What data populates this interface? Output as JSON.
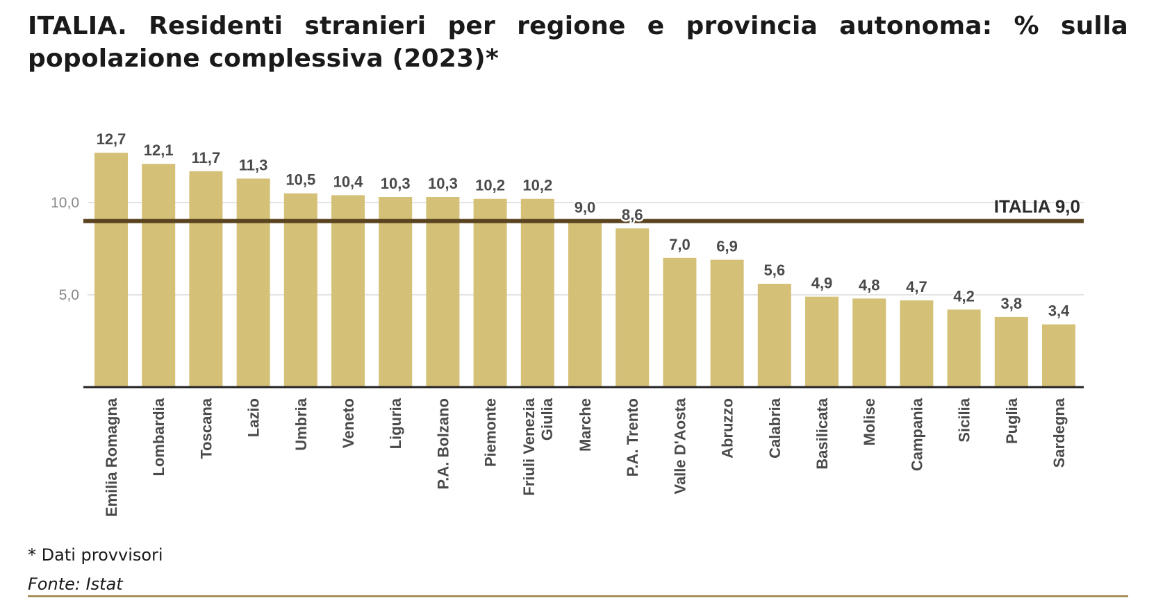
{
  "title": "ITALIA. Residenti stranieri per regione e provincia autonoma: % sulla popolazione complessiva (2023)*",
  "footnote": "* Dati provvisori",
  "source": "Fonte: Istat",
  "colors": {
    "bar": "#d4c077",
    "reference_line": "#5a4420",
    "baseline": "#222222",
    "grid": "#e3e3e3",
    "bottom_rule": "#a8905a"
  },
  "chart_data": {
    "type": "bar",
    "categories": [
      "Emilia Romagna",
      "Lombardia",
      "Toscana",
      "Lazio",
      "Umbria",
      "Veneto",
      "Liguria",
      "P.A. Bolzano",
      "Piemonte",
      "Friuli Venezia Giulia",
      "Marche",
      "P.A. Trento",
      "Valle D'Aosta",
      "Abruzzo",
      "Calabria",
      "Basilicata",
      "Molise",
      "Campania",
      "Sicilia",
      "Puglia",
      "Sardegna"
    ],
    "category_lines": [
      [
        "Emilia Romagna"
      ],
      [
        "Lombardia"
      ],
      [
        "Toscana"
      ],
      [
        "Lazio"
      ],
      [
        "Umbria"
      ],
      [
        "Veneto"
      ],
      [
        "Liguria"
      ],
      [
        "P.A. Bolzano"
      ],
      [
        "Piemonte"
      ],
      [
        "Friuli Venezia",
        "Giulia"
      ],
      [
        "Marche"
      ],
      [
        "P.A. Trento"
      ],
      [
        "Valle D'Aosta"
      ],
      [
        "Abruzzo"
      ],
      [
        "Calabria"
      ],
      [
        "Basilicata"
      ],
      [
        "Molise"
      ],
      [
        "Campania"
      ],
      [
        "Sicilia"
      ],
      [
        "Puglia"
      ],
      [
        "Sardegna"
      ]
    ],
    "values": [
      12.7,
      12.1,
      11.7,
      11.3,
      10.5,
      10.4,
      10.3,
      10.3,
      10.2,
      10.2,
      9.0,
      8.6,
      7.0,
      6.9,
      5.6,
      4.9,
      4.8,
      4.7,
      4.2,
      3.8,
      3.4
    ],
    "value_labels": [
      "12,7",
      "12,1",
      "11,7",
      "11,3",
      "10,5",
      "10,4",
      "10,3",
      "10,3",
      "10,2",
      "10,2",
      "9,0",
      "8,6",
      "7,0",
      "6,9",
      "5,6",
      "4,9",
      "4,8",
      "4,7",
      "4,2",
      "3,8",
      "3,4"
    ],
    "ylim": [
      0,
      15
    ],
    "yticks": [
      5.0,
      10.0
    ],
    "ytick_labels": [
      "5,0",
      "10,0"
    ],
    "grid": true,
    "reference_line": {
      "value": 9.0,
      "label": "ITALIA 9,0"
    }
  }
}
